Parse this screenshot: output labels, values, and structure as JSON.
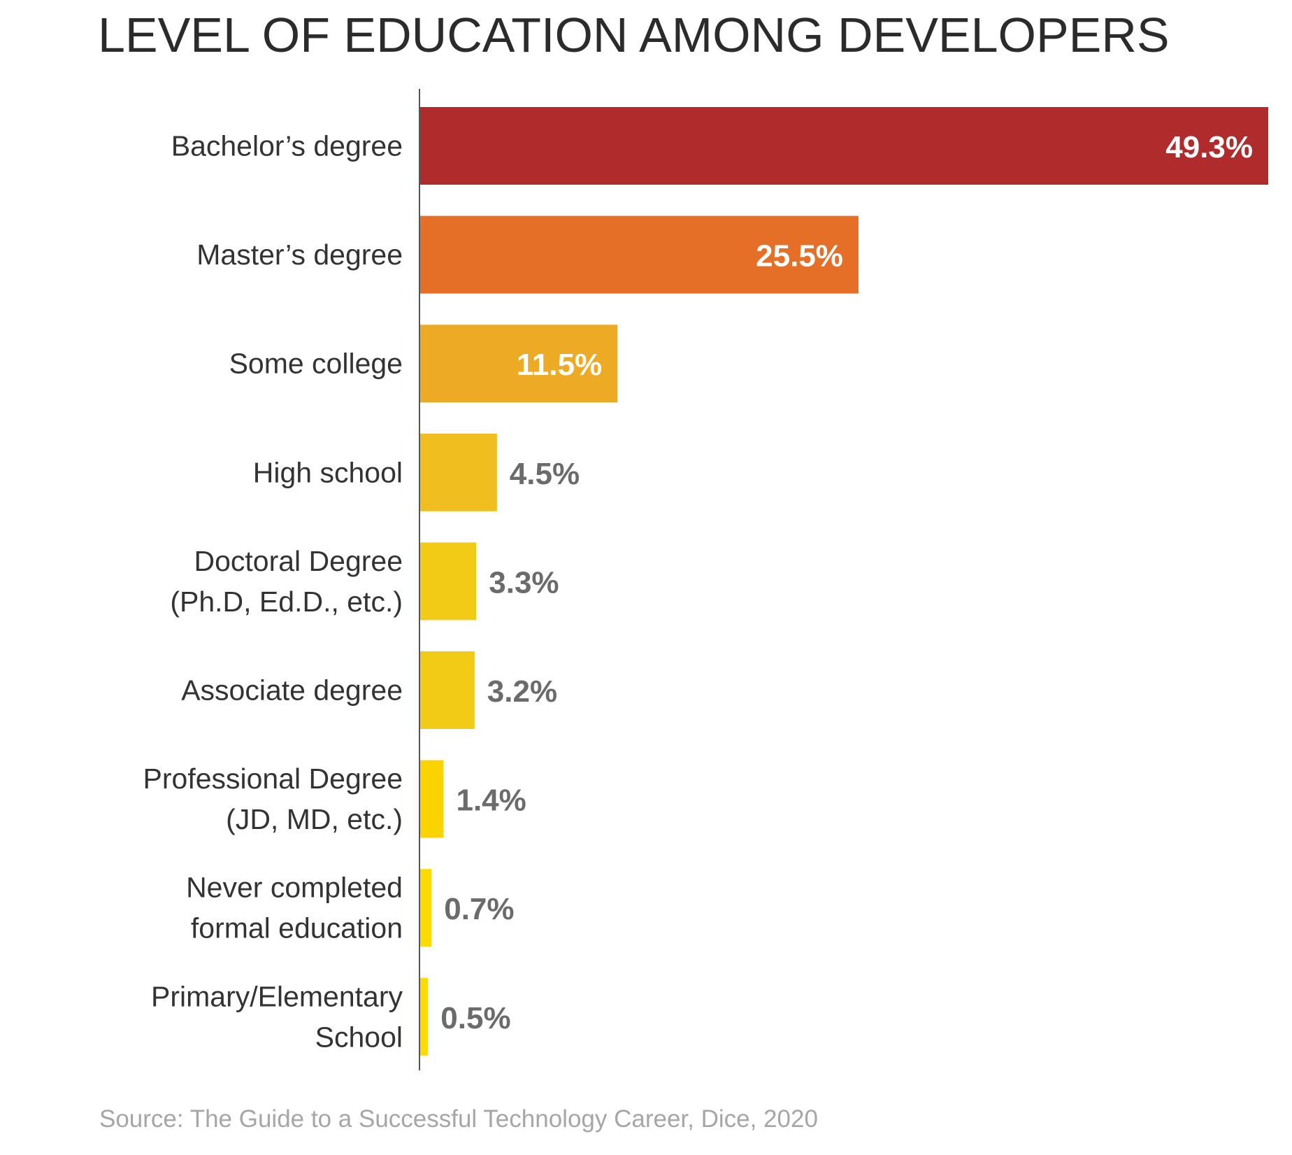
{
  "chart_data": {
    "type": "bar",
    "orientation": "horizontal",
    "title": "LEVEL OF EDUCATION AMONG DEVELOPERS",
    "source": "Source: The Guide to a Successful Technology Career, Dice, 2020",
    "xlim": [
      0,
      49.3
    ],
    "grid": false,
    "categories": [
      [
        "Bachelor’s degree"
      ],
      [
        "Master’s degree"
      ],
      [
        "Some college"
      ],
      [
        "High school"
      ],
      [
        "Doctoral Degree",
        "(Ph.D, Ed.D., etc.)"
      ],
      [
        "Associate degree"
      ],
      [
        "Professional Degree",
        "(JD, MD, etc.)"
      ],
      [
        "Never completed",
        "formal education"
      ],
      [
        "Primary/Elementary",
        "School"
      ]
    ],
    "values": [
      49.3,
      25.5,
      11.5,
      4.5,
      3.3,
      3.2,
      1.4,
      0.7,
      0.5
    ],
    "value_labels": [
      "49.3%",
      "25.5%",
      "11.5%",
      "4.5%",
      "3.3%",
      "3.2%",
      "1.4%",
      "0.7%",
      "0.5%"
    ],
    "colors": [
      "#B02B2B",
      "#E56F27",
      "#EDAA24",
      "#F0BE1E",
      "#F2CB17",
      "#F2CB17",
      "#FAD300",
      "#FCDC00",
      "#FCDC00"
    ],
    "label_inside_color": "#ffffff",
    "label_outside_color": "#6b6b6b",
    "axis_color": "#555555"
  }
}
